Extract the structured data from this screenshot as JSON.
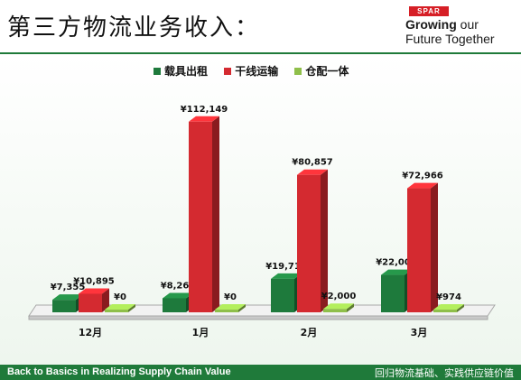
{
  "header": {
    "title": "第三方物流业务收入：",
    "brand_logo": "SPAR",
    "brand_tagline_bold": "Growing",
    "brand_tagline_rest": " our",
    "brand_tagline_line2": "Future Together"
  },
  "footer": {
    "left": "Back to Basics in Realizing Supply Chain Value",
    "right": "回归物流基础、实践供应链价值"
  },
  "colors": {
    "green": "#1e7a3c",
    "red": "#d42a30",
    "olive": "#8fbf4a",
    "brand_red": "#d61f26"
  },
  "chart_data": {
    "type": "bar",
    "categories": [
      "12月",
      "1月",
      "2月",
      "3月"
    ],
    "series": [
      {
        "name": "载具出租",
        "values": [
          7355,
          8261,
          19710,
          22002
        ],
        "labels": [
          "¥7,355",
          "¥8,261",
          "¥19,710",
          "¥22,002"
        ],
        "color": "#1e7a3c"
      },
      {
        "name": "干线运输",
        "values": [
          10895,
          112149,
          80857,
          72966
        ],
        "labels": [
          "¥10,895",
          "¥112,149",
          "¥80,857",
          "¥72,966"
        ],
        "color": "#d42a30"
      },
      {
        "name": "仓配一体",
        "values": [
          0,
          0,
          2000,
          974
        ],
        "labels": [
          "¥0",
          "¥0",
          "¥2,000",
          "¥974"
        ],
        "color": "#8fbf4a"
      }
    ],
    "ylim": [
      0,
      120000
    ],
    "legend_position": "top",
    "grid": false
  }
}
